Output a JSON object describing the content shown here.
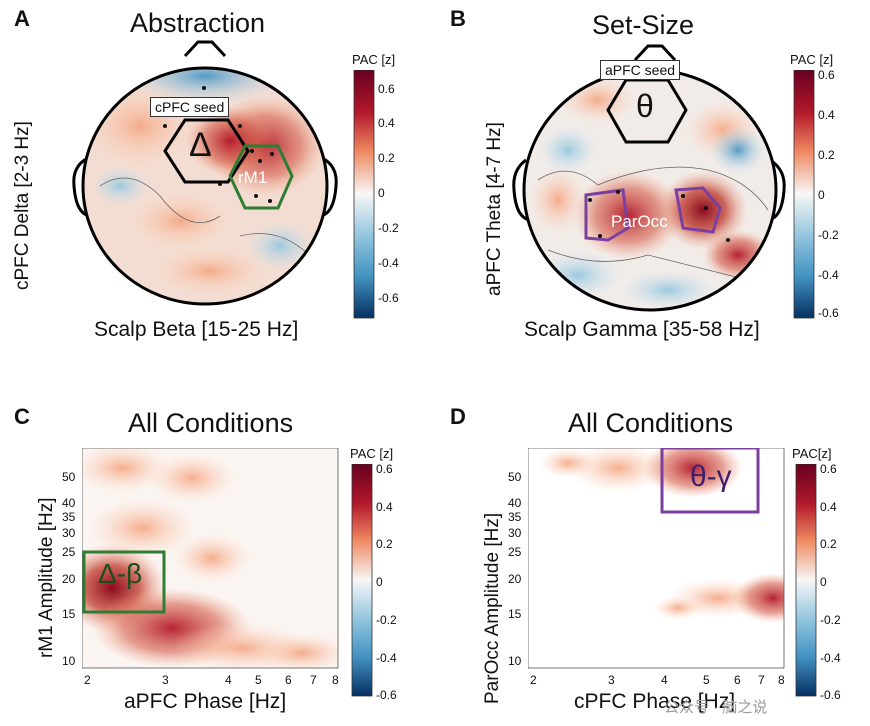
{
  "panel_a": {
    "letter": "A",
    "title": "Abstraction",
    "ylabel": "cPFC Delta [2-3 Hz]",
    "xlabel": "Scalp Beta [15-25 Hz]",
    "seed_label": "cPFC seed",
    "seed_symbol": "Δ",
    "roi_label": "rM1",
    "colorbar": {
      "title": "PAC [z]",
      "ticks": [
        "0.6",
        "0.4",
        "0.2",
        "0",
        "-0.2",
        "-0.4",
        "-0.6"
      ]
    }
  },
  "panel_b": {
    "letter": "B",
    "title": "Set-Size",
    "ylabel": "aPFC Theta [4-7 Hz]",
    "xlabel": "Scalp Gamma [35-58 Hz]",
    "seed_label": "aPFC seed",
    "seed_symbol": "θ",
    "roi_label": "ParOcc",
    "colorbar": {
      "title": "PAC [z]",
      "ticks": [
        "0.6",
        "0.4",
        "0.2",
        "0",
        "-0.2",
        "-0.4",
        "-0.6"
      ]
    }
  },
  "panel_c": {
    "letter": "C",
    "title": "All Conditions",
    "ylabel": "rM1 Amplitude [Hz]",
    "xlabel": "aPFC Phase [Hz]",
    "box_label": "Δ-β",
    "yticks": [
      "50",
      "40",
      "35",
      "30",
      "25",
      "20",
      "15",
      "10"
    ],
    "xticks": [
      "2",
      "3",
      "4",
      "5",
      "6",
      "7",
      "8"
    ],
    "colorbar": {
      "title": "PAC [z]",
      "ticks": [
        "0.6",
        "0.4",
        "0.2",
        "0",
        "-0.2",
        "-0.4",
        "-0.6"
      ]
    }
  },
  "panel_d": {
    "letter": "D",
    "title": "All Conditions",
    "ylabel": "ParOcc Amplitude [Hz]",
    "xlabel": "cPFC Phase [Hz]",
    "box_label": "θ-γ",
    "yticks": [
      "50",
      "40",
      "35",
      "30",
      "25",
      "20",
      "15",
      "10"
    ],
    "xticks": [
      "2",
      "3",
      "4",
      "5",
      "6",
      "7",
      "8"
    ],
    "colorbar": {
      "title": "PAC[z]",
      "ticks": [
        "0.6",
        "0.4",
        "0.2",
        "0",
        "-0.2",
        "-0.4",
        "-0.6"
      ]
    }
  },
  "watermark": "公众号 · 脑之说",
  "colors": {
    "positive": "#b2182b",
    "negative": "#2166ac",
    "roi_green": "#2e7d32",
    "roi_purple": "#7b3fa0"
  }
}
